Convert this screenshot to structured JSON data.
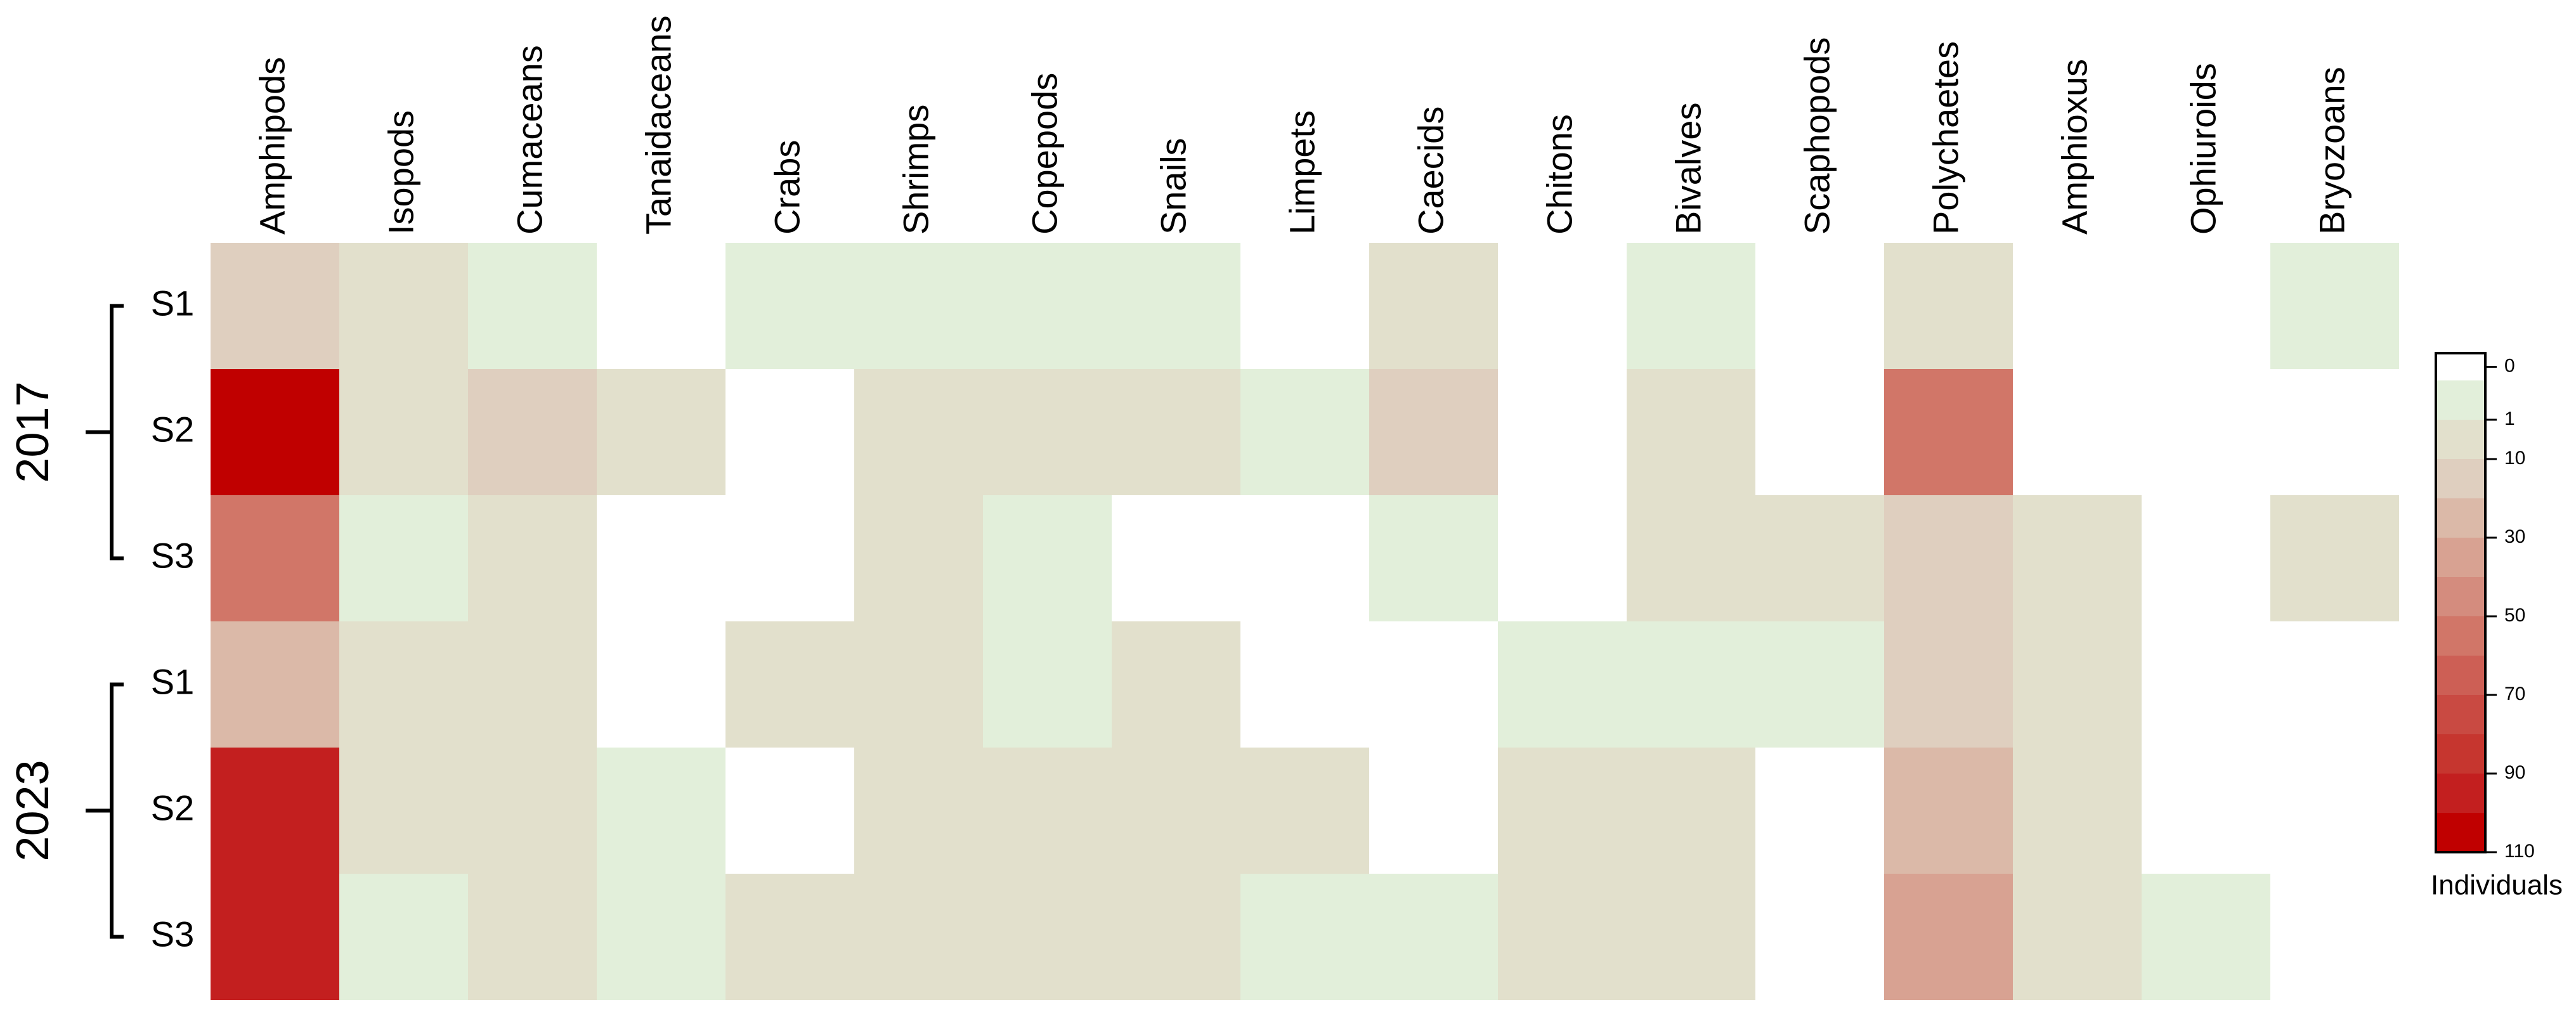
{
  "chart_data": {
    "type": "heatmap",
    "columns": [
      "Amphipods",
      "Isopods",
      "Cumaceans",
      "Tanaidaceans",
      "Crabs",
      "Shrimps",
      "Copepods",
      "Snails",
      "Limpets",
      "Caecids",
      "Chitons",
      "Bivalves",
      "Scaphopods",
      "Polychaetes",
      "Amphioxus",
      "Ophiuroids",
      "Bryozoans"
    ],
    "groups": [
      {
        "name": "2017",
        "rows": [
          "S1",
          "S2",
          "S3"
        ],
        "values": [
          [
            15,
            5,
            1,
            0,
            1,
            1,
            1,
            1,
            0,
            4,
            0,
            1,
            0,
            3,
            0,
            0,
            1
          ],
          [
            110,
            2,
            15,
            3,
            0,
            3,
            5,
            4,
            1,
            15,
            0,
            2,
            0,
            55,
            0,
            0,
            0
          ],
          [
            55,
            1,
            4,
            0,
            0,
            5,
            1,
            0,
            0,
            1,
            0,
            2,
            2,
            14,
            6,
            0,
            4
          ]
        ]
      },
      {
        "name": "2023",
        "rows": [
          "S1",
          "S2",
          "S3"
        ],
        "values": [
          [
            25,
            2,
            3,
            0,
            2,
            2,
            1,
            3,
            0,
            0,
            1,
            1,
            1,
            14,
            2,
            0,
            0
          ],
          [
            95,
            2,
            2,
            1,
            0,
            5,
            6,
            3,
            2,
            0,
            3,
            3,
            0,
            25,
            4,
            0,
            0
          ],
          [
            95,
            1,
            6,
            1,
            2,
            5,
            2,
            4,
            1,
            1,
            2,
            5,
            0,
            35,
            6,
            1,
            0
          ]
        ]
      }
    ],
    "legend": {
      "title": "Individuals",
      "ticks": [
        0,
        1,
        10,
        30,
        50,
        70,
        90,
        110
      ],
      "bounds": [
        0,
        1,
        10,
        20,
        30,
        40,
        50,
        60,
        70,
        80,
        90,
        100,
        110
      ],
      "colors": [
        "#e2efda",
        "#e2e0cc",
        "#dfcfbf",
        "#dbb9a8",
        "#d8a292",
        "#d48c7e",
        "#d17668",
        "#cd5f55",
        "#c94a42",
        "#c6362f",
        "#c31f1f",
        "#c00000"
      ],
      "zero_color": "#ffffff"
    }
  }
}
